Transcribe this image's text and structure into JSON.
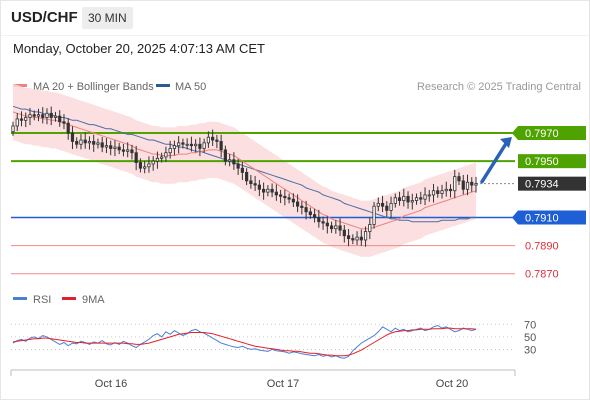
{
  "header": {
    "symbol": "USD/CHF",
    "timeframe": "30 MIN",
    "datetime": "Monday, October 20, 2025 4:07:13 AM CET"
  },
  "legend": {
    "items": [
      {
        "label": "MA 20 + Bollinger Bands",
        "color": "#f08080"
      },
      {
        "label": "MA 50",
        "color": "#2e5a94"
      }
    ],
    "copyright": "Research © 2025 Trading Central"
  },
  "colors": {
    "green_level": "#4fa300",
    "blue_level": "#1f5fd6",
    "red_level": "#f08a8a",
    "price_tag": "#333333",
    "arrow": "#2a62b8",
    "candle": "#333333",
    "ma20": "#f08080",
    "ma50": "#4a6fa5",
    "band_fill": "#fbd9da",
    "rsi": "#4a7fd6",
    "rsi_ma": "#e0202a"
  },
  "chart_data": [
    {
      "type": "candlestick",
      "x_labels": [
        "Oct 16",
        "Oct 17",
        "Oct 20"
      ],
      "ylim": [
        0.7862,
        0.7997
      ],
      "levels": [
        {
          "value": 0.797,
          "label": "0.7970",
          "kind": "resistance"
        },
        {
          "value": 0.795,
          "label": "0.7950",
          "kind": "resistance"
        },
        {
          "value": 0.791,
          "label": "0.7910",
          "kind": "pivot"
        },
        {
          "value": 0.789,
          "label": "0.7890",
          "kind": "support"
        },
        {
          "value": 0.787,
          "label": "0.7870",
          "kind": "support"
        }
      ],
      "current_price": {
        "value": 0.7934,
        "label": "0.7934"
      },
      "close_series": [
        0.7975,
        0.798,
        0.7979,
        0.7981,
        0.7983,
        0.7982,
        0.7983,
        0.7981,
        0.7984,
        0.7981,
        0.7982,
        0.7978,
        0.7977,
        0.797,
        0.7964,
        0.7962,
        0.7965,
        0.7963,
        0.7964,
        0.7962,
        0.7963,
        0.796,
        0.7961,
        0.7959,
        0.796,
        0.7958,
        0.7957,
        0.7958,
        0.7956,
        0.7949,
        0.7945,
        0.7946,
        0.7948,
        0.795,
        0.7952,
        0.7953,
        0.7956,
        0.7959,
        0.7961,
        0.7963,
        0.7962,
        0.7962,
        0.7961,
        0.7962,
        0.7959,
        0.7963,
        0.7967,
        0.7965,
        0.7964,
        0.7958,
        0.795,
        0.7951,
        0.7948,
        0.7945,
        0.7942,
        0.7936,
        0.7934,
        0.7933,
        0.793,
        0.7928,
        0.793,
        0.7928,
        0.7926,
        0.7925,
        0.7924,
        0.7923,
        0.7921,
        0.7918,
        0.7917,
        0.7914,
        0.7912,
        0.791,
        0.7907,
        0.7906,
        0.7904,
        0.7902,
        0.7904,
        0.7901,
        0.7897,
        0.7895,
        0.7894,
        0.7896,
        0.7894,
        0.79,
        0.7905,
        0.7918,
        0.792,
        0.7918,
        0.7915,
        0.792,
        0.7924,
        0.7922,
        0.7925,
        0.7921,
        0.7922,
        0.7924,
        0.7923,
        0.7926,
        0.7926,
        0.7929,
        0.7927,
        0.7929,
        0.793,
        0.7929,
        0.7939,
        0.7936,
        0.793,
        0.7935,
        0.7933,
        0.7934
      ],
      "ma20": [
        0.7985,
        0.7984,
        0.7983,
        0.7982,
        0.7982,
        0.7981,
        0.7981,
        0.798,
        0.798,
        0.7979,
        0.7979,
        0.7978,
        0.7977,
        0.7976,
        0.7975,
        0.7974,
        0.7973,
        0.7972,
        0.7971,
        0.797,
        0.7969,
        0.7968,
        0.7967,
        0.7966,
        0.7965,
        0.7964,
        0.7963,
        0.7962,
        0.7961,
        0.7959,
        0.7958,
        0.7957,
        0.7956,
        0.7955,
        0.7955,
        0.7954,
        0.7954,
        0.7954,
        0.7954,
        0.7955,
        0.7955,
        0.7955,
        0.7956,
        0.7956,
        0.7957,
        0.7957,
        0.7958,
        0.7958,
        0.7958,
        0.7957,
        0.7956,
        0.7955,
        0.7954,
        0.7952,
        0.795,
        0.7948,
        0.7946,
        0.7944,
        0.7942,
        0.794,
        0.7938,
        0.7936,
        0.7934,
        0.7932,
        0.793,
        0.7928,
        0.7926,
        0.7924,
        0.7922,
        0.792,
        0.7918,
        0.7916,
        0.7914,
        0.7912,
        0.7911,
        0.7909,
        0.7908,
        0.7907,
        0.7906,
        0.7905,
        0.7904,
        0.7903,
        0.7902,
        0.7902,
        0.7902,
        0.7903,
        0.7904,
        0.7905,
        0.7906,
        0.7907,
        0.7908,
        0.7909,
        0.7911,
        0.7912,
        0.7913,
        0.7914,
        0.7915,
        0.7917,
        0.7918,
        0.7919,
        0.792,
        0.7921,
        0.7922,
        0.7923,
        0.7924,
        0.7925,
        0.7926,
        0.7927,
        0.7928,
        0.7929
      ],
      "ma50": [
        0.7989,
        0.7988,
        0.7987,
        0.7987,
        0.7986,
        0.7985,
        0.7985,
        0.7984,
        0.7983,
        0.7983,
        0.7982,
        0.7981,
        0.7981,
        0.798,
        0.7979,
        0.7979,
        0.7978,
        0.7977,
        0.7976,
        0.7976,
        0.7975,
        0.7974,
        0.7973,
        0.7973,
        0.7972,
        0.7971,
        0.797,
        0.7969,
        0.7969,
        0.7968,
        0.7967,
        0.7966,
        0.7965,
        0.7965,
        0.7964,
        0.7963,
        0.7962,
        0.7962,
        0.7961,
        0.796,
        0.796,
        0.7959,
        0.7958,
        0.7957,
        0.7957,
        0.7956,
        0.7955,
        0.7954,
        0.7953,
        0.7952,
        0.7951,
        0.795,
        0.7949,
        0.7948,
        0.7947,
        0.7946,
        0.7945,
        0.7944,
        0.7943,
        0.7942,
        0.7941,
        0.794,
        0.7939,
        0.7938,
        0.7937,
        0.7936,
        0.7935,
        0.7934,
        0.7933,
        0.7931,
        0.793,
        0.7929,
        0.7928,
        0.7926,
        0.7925,
        0.7924,
        0.7923,
        0.7922,
        0.792,
        0.7919,
        0.7918,
        0.7917,
        0.7916,
        0.7915,
        0.7914,
        0.7913,
        0.7912,
        0.7911,
        0.791,
        0.7909,
        0.7909,
        0.7908,
        0.7908,
        0.7908,
        0.7907,
        0.7907,
        0.7907,
        0.7907,
        0.7907,
        0.7907,
        0.7907,
        0.7908,
        0.7908,
        0.7908,
        0.7908,
        0.7909,
        0.7909,
        0.7909,
        0.791,
        0.791
      ],
      "band_width": 0.002,
      "projection_target": 0.797
    },
    {
      "type": "line",
      "legend": [
        {
          "label": "RSI",
          "color": "#4a7fd6"
        },
        {
          "label": "9MA",
          "color": "#e0202a"
        }
      ],
      "ylim": [
        10,
        80
      ],
      "ticks": [
        {
          "value": 70,
          "label": "70"
        },
        {
          "value": 50,
          "label": "50"
        },
        {
          "value": 30,
          "label": "30"
        }
      ],
      "rsi": [
        40,
        44,
        46,
        43,
        48,
        50,
        47,
        52,
        50,
        46,
        42,
        38,
        41,
        36,
        40,
        39,
        43,
        41,
        38,
        42,
        40,
        44,
        39,
        37,
        41,
        38,
        43,
        40,
        36,
        33,
        38,
        42,
        46,
        52,
        55,
        50,
        58,
        54,
        60,
        56,
        52,
        55,
        60,
        62,
        58,
        56,
        52,
        48,
        44,
        40,
        38,
        36,
        34,
        33,
        35,
        32,
        30,
        31,
        29,
        28,
        27,
        30,
        28,
        27,
        26,
        24,
        26,
        25,
        23,
        22,
        21,
        20,
        22,
        19,
        21,
        18,
        20,
        17,
        16,
        19,
        28,
        34,
        40,
        44,
        48,
        52,
        58,
        66,
        62,
        58,
        64,
        60,
        62,
        58,
        60,
        62,
        64,
        60,
        62,
        66,
        68,
        64,
        66,
        62,
        58,
        60,
        64,
        62,
        60,
        62
      ],
      "ma9": [
        42,
        43,
        44,
        45,
        46,
        47,
        47,
        48,
        48,
        47,
        46,
        45,
        44,
        43,
        42,
        41,
        41,
        40,
        40,
        40,
        40,
        40,
        40,
        40,
        40,
        40,
        40,
        39,
        39,
        38,
        38,
        39,
        40,
        42,
        44,
        46,
        48,
        50,
        52,
        54,
        55,
        56,
        57,
        57,
        57,
        57,
        56,
        55,
        53,
        51,
        49,
        47,
        45,
        43,
        41,
        39,
        37,
        35,
        34,
        33,
        32,
        31,
        30,
        29,
        28,
        28,
        27,
        27,
        26,
        25,
        24,
        24,
        23,
        22,
        21,
        21,
        20,
        20,
        20,
        21,
        23,
        26,
        29,
        33,
        37,
        41,
        45,
        49,
        53,
        56,
        58,
        59,
        60,
        60,
        61,
        61,
        62,
        62,
        62,
        63,
        63,
        63,
        64,
        64,
        63,
        63,
        63,
        63,
        63,
        62
      ]
    }
  ]
}
